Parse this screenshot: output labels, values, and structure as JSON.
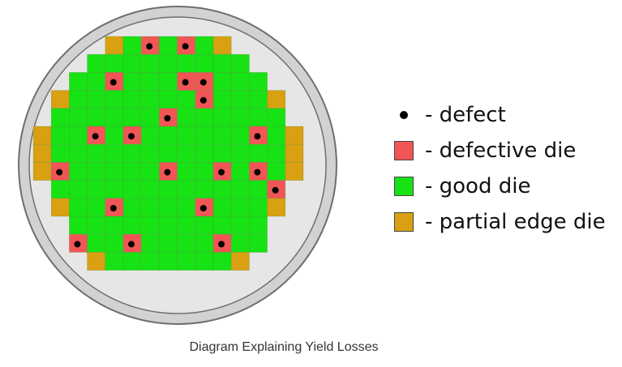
{
  "colors": {
    "good": "#16e214",
    "defective": "#f25555",
    "edge": "#d9a012",
    "defect": "#000000",
    "wafer_fill": "#e6e6e6",
    "wafer_rim": "#d2d2d2",
    "wafer_stroke": "#6e6e6e"
  },
  "legend": [
    {
      "marker": "defect-dot",
      "label": "- defect"
    },
    {
      "marker": "defective-die",
      "label": "- defective die"
    },
    {
      "marker": "good-die",
      "label": "- good die"
    },
    {
      "marker": "partial-edge-die",
      "label": "- partial edge die"
    }
  ],
  "wafer_map": {
    "rows": [
      "....EGDGDGE....",
      "...GGGGGGGGG...",
      "..GGDGGGDDGGG..",
      ".EGGGGGGGDGGGE.",
      ".GGGGGGDGGGGGG.",
      "EGGDGDGGGGGGDGE",
      "EGGGGGGGGGGGGGE",
      "EDGGGGGDGGDGDGE",
      ".GGGGGGGGGGGGD.",
      ".EGGDGGGGDGGGE.",
      "..GGGGGGGGGGG..",
      "..DGGDGGGGDGG..",
      "...EGGGGGGGE..."
    ],
    "legend_codes": {
      "G": "good die",
      "D": "defective die",
      "E": "partial edge die",
      ".": "no die"
    }
  },
  "caption": "Diagram Explaining Yield Losses"
}
